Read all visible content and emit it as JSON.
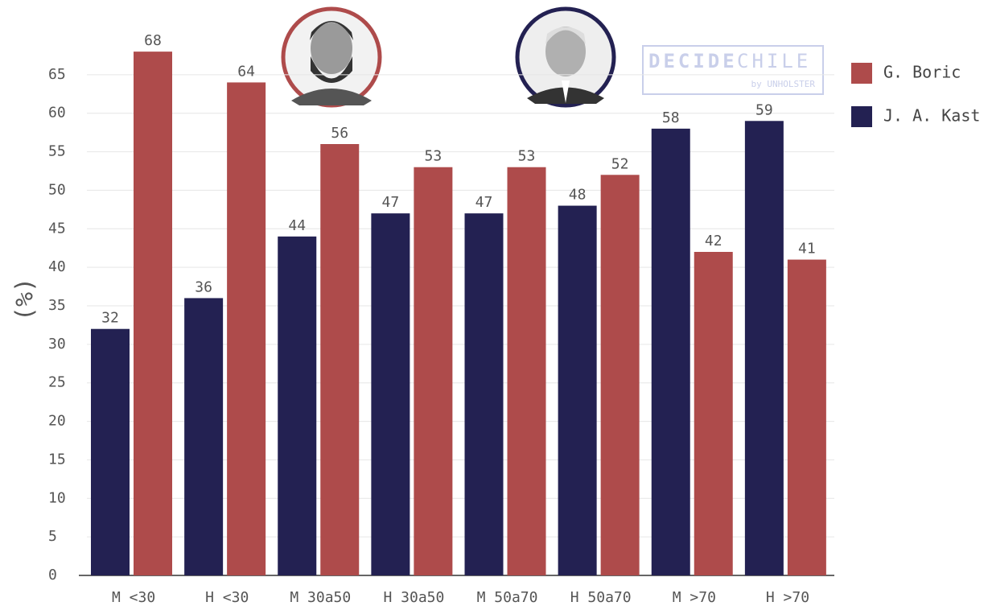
{
  "chart_data": {
    "type": "bar",
    "y_label": "(%)",
    "categories": [
      "M <30",
      "H <30",
      "M 30a50",
      "H 30a50",
      "M 50a70",
      "H 50a70",
      "M >70",
      "H >70"
    ],
    "series": [
      {
        "name": "G. Boric",
        "color": "#ae4b4b",
        "values": [
          68,
          64,
          56,
          53,
          53,
          52,
          42,
          41
        ]
      },
      {
        "name": "J. A. Kast",
        "color": "#232152",
        "values": [
          32,
          36,
          44,
          47,
          47,
          48,
          58,
          59
        ]
      }
    ],
    "ylim": [
      0,
      70
    ],
    "yticks": [
      0,
      5,
      10,
      15,
      20,
      25,
      30,
      35,
      40,
      45,
      50,
      55,
      60,
      65
    ],
    "grid": true,
    "watermark": {
      "brand_bold": "DECIDE",
      "brand_light": "CHILE",
      "byline": "by UNHOLSTER"
    }
  }
}
